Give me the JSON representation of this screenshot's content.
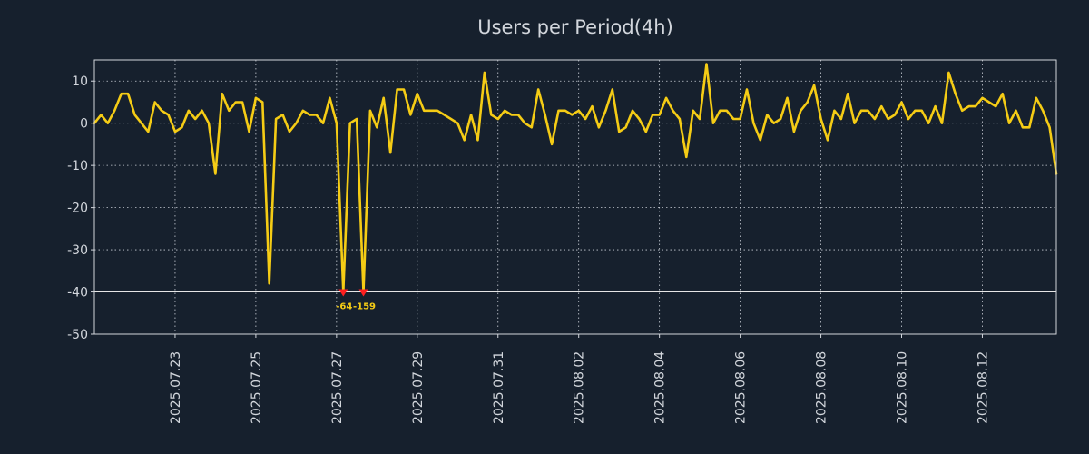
{
  "chart_data": {
    "type": "line",
    "title": "Users per Period(4h)",
    "xlabel": "",
    "ylabel": "",
    "ylim": [
      -50,
      15
    ],
    "yticks": [
      10,
      0,
      -10,
      -20,
      -30,
      -40,
      -50
    ],
    "reference_line": -40,
    "grid": true,
    "series": [
      {
        "name": "users",
        "color": "#f5cc15",
        "values": [
          0,
          2,
          0,
          3,
          7,
          7,
          2,
          0,
          -2,
          5,
          3,
          2,
          -2,
          -1,
          3,
          1,
          3,
          0,
          -12,
          7,
          3,
          5,
          5,
          -2,
          6,
          5,
          -38,
          1,
          2,
          -2,
          0,
          3,
          2,
          2,
          0,
          6,
          0,
          -40,
          0,
          1,
          -40,
          3,
          -1,
          6,
          -7,
          8,
          8,
          2,
          7,
          3,
          3,
          3,
          2,
          1,
          0,
          -4,
          2,
          -4,
          12,
          2,
          1,
          3,
          2,
          2,
          0,
          -1,
          8,
          2,
          -5,
          3,
          3,
          2,
          3,
          1,
          4,
          -1,
          3,
          8,
          -2,
          -1,
          3,
          1,
          -2,
          2,
          2,
          6,
          3,
          1,
          -8,
          3,
          1,
          14,
          0,
          3,
          3,
          1,
          1,
          8,
          0,
          -4,
          2,
          0,
          1,
          6,
          -2,
          3,
          5,
          9,
          1,
          -4,
          3,
          1,
          7,
          0,
          3,
          3,
          1,
          4,
          1,
          2,
          5,
          1,
          3,
          3,
          0,
          4,
          0,
          12,
          7,
          3,
          4,
          4,
          6,
          5,
          4,
          7,
          0,
          3,
          -1,
          -1,
          6,
          3,
          -1,
          -12
        ]
      }
    ],
    "x_tick_labels": [
      "2025.07.23",
      "2025.07.25",
      "2025.07.27",
      "2025.07.29",
      "2025.07.31",
      "2025.08.02",
      "2025.08.04",
      "2025.08.06",
      "2025.08.08",
      "2025.08.10",
      "2025.08.12"
    ],
    "x_tick_indices": [
      12,
      24,
      36,
      48,
      60,
      72,
      84,
      96,
      108,
      120,
      132
    ],
    "annotations": [
      {
        "label": "-64",
        "index": 37,
        "value": -40
      },
      {
        "label": "-159",
        "index": 40,
        "value": -40
      }
    ]
  }
}
